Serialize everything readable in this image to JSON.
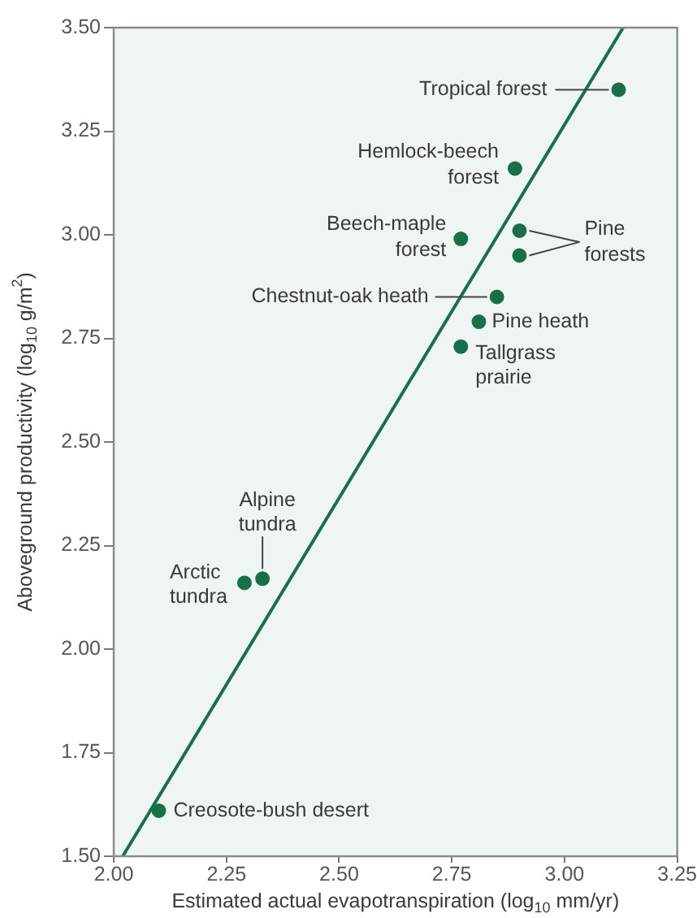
{
  "chart_data": {
    "type": "scatter",
    "xlabel": "Estimated actual evapotranspiration (log$_{10}$ mm/yr)",
    "ylabel": "Aboveground productivity (log$_{10}$ g/m$^{2}$)",
    "series": [
      {
        "marker": "circle",
        "color": "#17704a",
        "x": [
          3.12,
          2.89,
          2.77,
          2.9,
          2.9,
          2.85,
          2.81,
          2.77,
          2.33,
          2.29,
          2.1
        ],
        "values": [
          3.35,
          3.16,
          2.99,
          3.01,
          2.95,
          2.85,
          2.79,
          2.73,
          2.17,
          2.16,
          1.61
        ]
      },
      {
        "type": "line",
        "color": "#17704a",
        "x": [
          2.02,
          3.13
        ],
        "values": [
          1.5,
          3.5
        ]
      }
    ],
    "xlim": [
      2.0,
      3.25
    ],
    "xticks": [
      {
        "value": 2.0,
        "label": "2.00"
      },
      {
        "value": 2.25,
        "label": "2.25"
      },
      {
        "value": 2.5,
        "label": "2.50"
      },
      {
        "value": 2.75,
        "label": "2.75"
      },
      {
        "value": 3.0,
        "label": "3.00"
      },
      {
        "value": 3.25,
        "label": "3.25"
      }
    ],
    "ylim": [
      1.5,
      3.5
    ],
    "yticks": [
      {
        "value": 1.5,
        "label": "1.50"
      },
      {
        "value": 1.75,
        "label": "1.75"
      },
      {
        "value": 2.0,
        "label": "2.00"
      },
      {
        "value": 2.25,
        "label": "2.25"
      },
      {
        "value": 2.5,
        "label": "2.50"
      },
      {
        "value": 2.75,
        "label": "2.75"
      },
      {
        "value": 3.0,
        "label": "3.00"
      },
      {
        "value": 3.25,
        "label": "3.25"
      },
      {
        "value": 3.5,
        "label": "3.50"
      }
    ],
    "grid": false,
    "legend": false,
    "line_style": "solid",
    "annotations": [
      {
        "text": "Tropical forest",
        "x": 3.12,
        "y": 3.35
      },
      {
        "text": "Hemlock-beech forest",
        "x": 2.89,
        "y": 3.16
      },
      {
        "text": "Beech-maple forest",
        "x": 2.77,
        "y": 2.99
      },
      {
        "text": "Pine forests",
        "x": 2.9,
        "y": 3.01
      },
      {
        "text": "Chestnut-oak heath",
        "x": 2.85,
        "y": 2.85
      },
      {
        "text": "Pine heath",
        "x": 2.81,
        "y": 2.79
      },
      {
        "text": "Tallgrass prairie",
        "x": 2.77,
        "y": 2.73
      },
      {
        "text": "Alpine tundra",
        "x": 2.33,
        "y": 2.17
      },
      {
        "text": "Arctic tundra",
        "x": 2.29,
        "y": 2.16
      },
      {
        "text": "Creosote-bush desert",
        "x": 2.1,
        "y": 1.61
      }
    ]
  }
}
